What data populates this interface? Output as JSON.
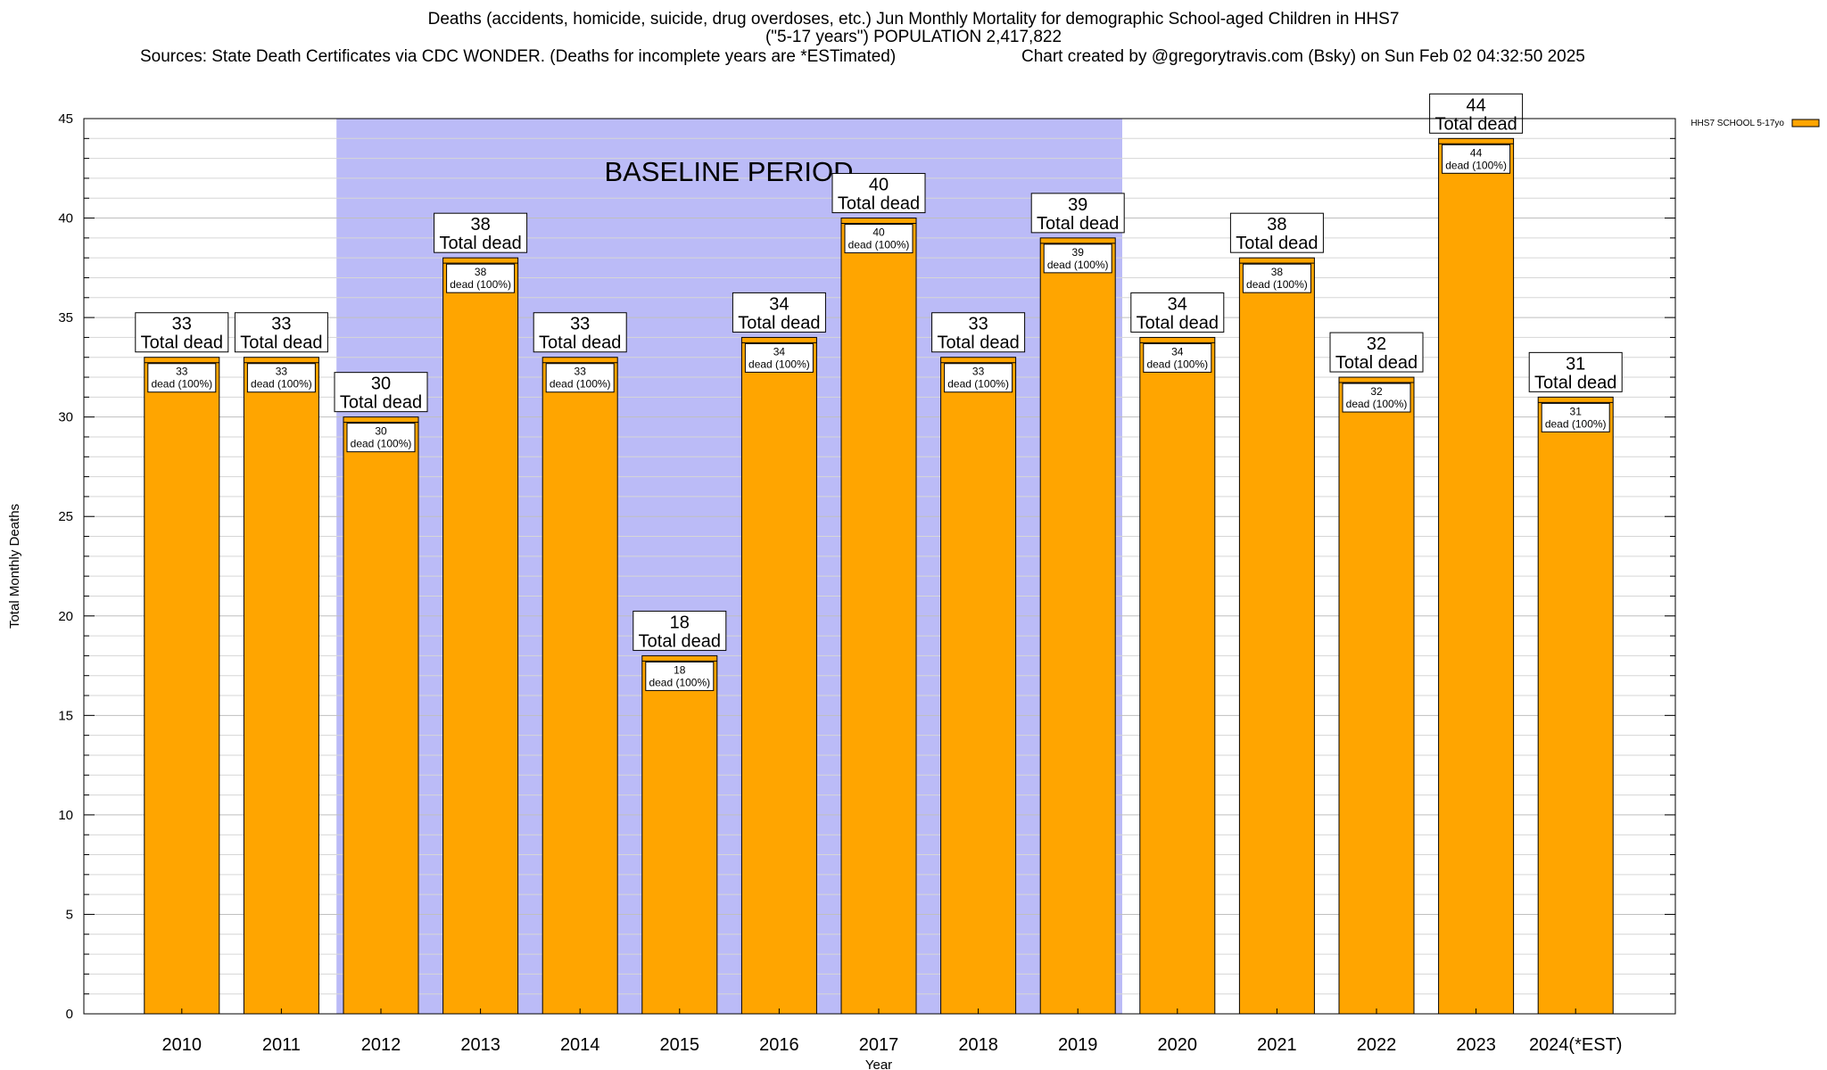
{
  "title": {
    "line1": "Deaths (accidents, homicide, suicide, drug overdoses, etc.) Jun Monthly Mortality for demographic School-aged Children in HHS7",
    "line2": "(\"5-17 years\") POPULATION 2,417,822",
    "sources": "Sources: State Death Certificates via CDC WONDER. (Deaths for incomplete years are *ESTimated)",
    "credit": "Chart created by @gregorytravis.com (Bsky) on Sun Feb 02 04:32:50 2025"
  },
  "colors": {
    "bar": "#ffa500",
    "baseline_band": "#bbbbf7",
    "label_box": "#ffffff"
  },
  "chart_data": {
    "type": "bar",
    "xlabel": "Year",
    "ylabel": "Total Monthly Deaths",
    "ylim": [
      0,
      45
    ],
    "yticks": [
      0,
      5,
      10,
      15,
      20,
      25,
      30,
      35,
      40,
      45
    ],
    "grid": true,
    "legend_position": "top-right",
    "categories": [
      "2010",
      "2011",
      "2012",
      "2013",
      "2014",
      "2015",
      "2016",
      "2017",
      "2018",
      "2019",
      "2020",
      "2021",
      "2022",
      "2023",
      "2024(*EST)"
    ],
    "series": [
      {
        "name": "HHS7 SCHOOL 5-17yo",
        "values": [
          33,
          33,
          30,
          38,
          33,
          18,
          34,
          40,
          33,
          39,
          34,
          38,
          32,
          44,
          31
        ]
      }
    ],
    "total_label": "Total dead",
    "inner_label": "dead (100%)",
    "baseline": {
      "label": "BASELINE PERIOD",
      "from": "2012",
      "to": "2019"
    }
  }
}
